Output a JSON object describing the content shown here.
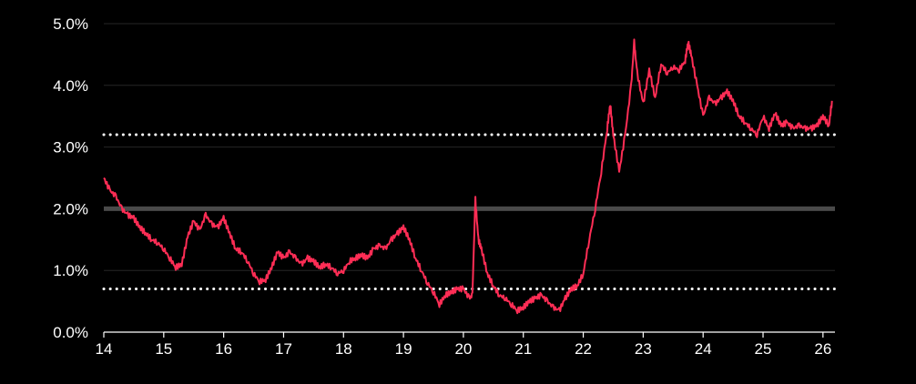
{
  "chart_data": {
    "type": "line",
    "title": "",
    "xlabel": "",
    "ylabel": "",
    "xlim": [
      14,
      26.2
    ],
    "ylim": [
      0,
      5
    ],
    "grid": "horizontal",
    "x_ticks": [
      "14",
      "15",
      "16",
      "17",
      "18",
      "19",
      "20",
      "21",
      "22",
      "23",
      "24",
      "25",
      "26"
    ],
    "y_ticks": [
      "0.0%",
      "1.0%",
      "2.0%",
      "3.0%",
      "4.0%",
      "5.0%"
    ],
    "reference_lines": [
      {
        "value": 2.0,
        "style": "solid",
        "color": "#4a4a4a"
      },
      {
        "value": 3.2,
        "style": "dotted",
        "color": "#ffffff"
      },
      {
        "value": 0.7,
        "style": "dotted",
        "color": "#ffffff"
      }
    ],
    "series": [
      {
        "color": "#ff2d55",
        "points": [
          [
            14.0,
            2.5
          ],
          [
            14.1,
            2.3
          ],
          [
            14.2,
            2.2
          ],
          [
            14.3,
            2.0
          ],
          [
            14.4,
            1.9
          ],
          [
            14.5,
            1.85
          ],
          [
            14.6,
            1.7
          ],
          [
            14.7,
            1.6
          ],
          [
            14.8,
            1.5
          ],
          [
            14.9,
            1.45
          ],
          [
            15.0,
            1.35
          ],
          [
            15.1,
            1.2
          ],
          [
            15.2,
            1.05
          ],
          [
            15.3,
            1.1
          ],
          [
            15.4,
            1.55
          ],
          [
            15.5,
            1.8
          ],
          [
            15.6,
            1.65
          ],
          [
            15.7,
            1.9
          ],
          [
            15.8,
            1.75
          ],
          [
            15.9,
            1.7
          ],
          [
            16.0,
            1.85
          ],
          [
            16.1,
            1.6
          ],
          [
            16.2,
            1.35
          ],
          [
            16.3,
            1.3
          ],
          [
            16.4,
            1.15
          ],
          [
            16.5,
            0.95
          ],
          [
            16.6,
            0.82
          ],
          [
            16.7,
            0.85
          ],
          [
            16.8,
            1.05
          ],
          [
            16.9,
            1.3
          ],
          [
            17.0,
            1.2
          ],
          [
            17.1,
            1.3
          ],
          [
            17.2,
            1.2
          ],
          [
            17.3,
            1.1
          ],
          [
            17.4,
            1.2
          ],
          [
            17.5,
            1.15
          ],
          [
            17.6,
            1.05
          ],
          [
            17.7,
            1.1
          ],
          [
            17.8,
            1.05
          ],
          [
            17.9,
            0.95
          ],
          [
            18.0,
            1.0
          ],
          [
            18.1,
            1.15
          ],
          [
            18.2,
            1.2
          ],
          [
            18.3,
            1.25
          ],
          [
            18.4,
            1.2
          ],
          [
            18.5,
            1.35
          ],
          [
            18.6,
            1.4
          ],
          [
            18.7,
            1.35
          ],
          [
            18.8,
            1.5
          ],
          [
            18.9,
            1.6
          ],
          [
            19.0,
            1.7
          ],
          [
            19.1,
            1.5
          ],
          [
            19.2,
            1.2
          ],
          [
            19.3,
            1.0
          ],
          [
            19.4,
            0.8
          ],
          [
            19.5,
            0.65
          ],
          [
            19.6,
            0.45
          ],
          [
            19.7,
            0.6
          ],
          [
            19.8,
            0.65
          ],
          [
            19.9,
            0.7
          ],
          [
            20.0,
            0.7
          ],
          [
            20.1,
            0.55
          ],
          [
            20.15,
            0.6
          ],
          [
            20.2,
            2.15
          ],
          [
            20.25,
            1.5
          ],
          [
            20.3,
            1.35
          ],
          [
            20.4,
            0.95
          ],
          [
            20.5,
            0.75
          ],
          [
            20.6,
            0.6
          ],
          [
            20.7,
            0.55
          ],
          [
            20.8,
            0.45
          ],
          [
            20.9,
            0.35
          ],
          [
            21.0,
            0.4
          ],
          [
            21.1,
            0.5
          ],
          [
            21.2,
            0.55
          ],
          [
            21.3,
            0.6
          ],
          [
            21.4,
            0.5
          ],
          [
            21.5,
            0.4
          ],
          [
            21.6,
            0.35
          ],
          [
            21.7,
            0.55
          ],
          [
            21.8,
            0.7
          ],
          [
            21.9,
            0.75
          ],
          [
            22.0,
            0.95
          ],
          [
            22.1,
            1.5
          ],
          [
            22.2,
            2.0
          ],
          [
            22.3,
            2.6
          ],
          [
            22.4,
            3.3
          ],
          [
            22.45,
            3.7
          ],
          [
            22.5,
            3.2
          ],
          [
            22.6,
            2.6
          ],
          [
            22.7,
            3.2
          ],
          [
            22.8,
            4.0
          ],
          [
            22.85,
            4.7
          ],
          [
            22.9,
            4.2
          ],
          [
            23.0,
            3.7
          ],
          [
            23.1,
            4.25
          ],
          [
            23.2,
            3.8
          ],
          [
            23.3,
            4.35
          ],
          [
            23.4,
            4.2
          ],
          [
            23.5,
            4.3
          ],
          [
            23.6,
            4.25
          ],
          [
            23.7,
            4.4
          ],
          [
            23.75,
            4.7
          ],
          [
            23.8,
            4.5
          ],
          [
            23.9,
            4.0
          ],
          [
            24.0,
            3.5
          ],
          [
            24.1,
            3.8
          ],
          [
            24.2,
            3.7
          ],
          [
            24.3,
            3.8
          ],
          [
            24.4,
            3.9
          ],
          [
            24.5,
            3.75
          ],
          [
            24.6,
            3.5
          ],
          [
            24.7,
            3.4
          ],
          [
            24.8,
            3.3
          ],
          [
            24.9,
            3.2
          ],
          [
            25.0,
            3.5
          ],
          [
            25.1,
            3.3
          ],
          [
            25.2,
            3.55
          ],
          [
            25.3,
            3.35
          ],
          [
            25.4,
            3.4
          ],
          [
            25.5,
            3.3
          ],
          [
            25.6,
            3.35
          ],
          [
            25.7,
            3.3
          ],
          [
            25.8,
            3.3
          ],
          [
            25.9,
            3.35
          ],
          [
            26.0,
            3.5
          ],
          [
            26.1,
            3.35
          ],
          [
            26.15,
            3.75
          ]
        ]
      }
    ]
  }
}
